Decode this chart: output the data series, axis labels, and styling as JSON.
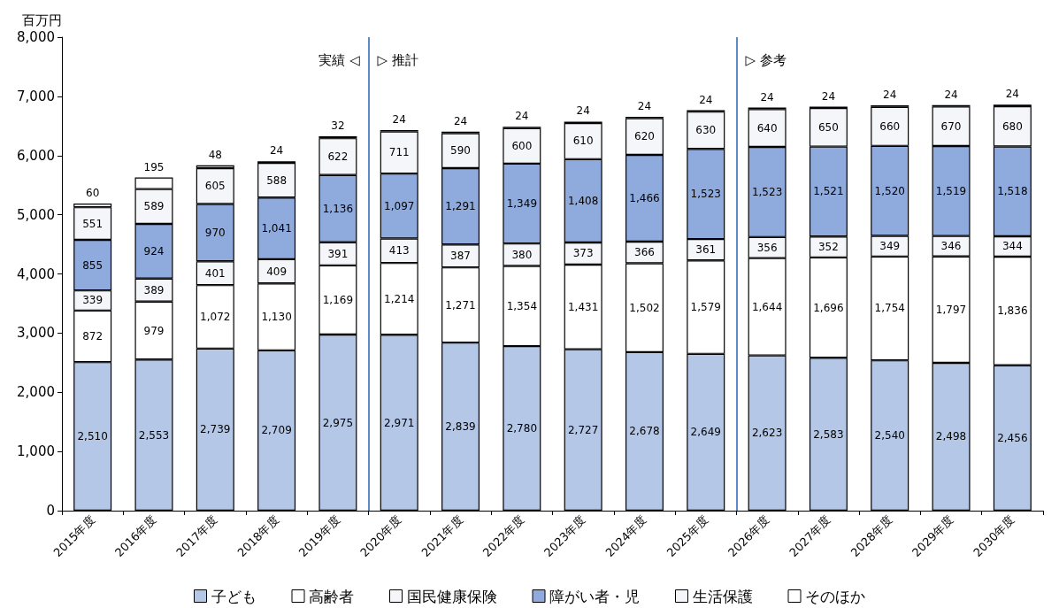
{
  "chart_data": {
    "type": "bar",
    "stacked": true,
    "ylabel": "百万円",
    "categories": [
      "2015年度",
      "2016年度",
      "2017年度",
      "2018年度",
      "2019年度",
      "2020年度",
      "2021年度",
      "2022年度",
      "2023年度",
      "2024年度",
      "2025年度",
      "2026年度",
      "2027年度",
      "2028年度",
      "2029年度",
      "2030年度"
    ],
    "series": [
      {
        "name": "子ども",
        "color": "#b4c7e7",
        "values": [
          2510,
          2553,
          2739,
          2709,
          2975,
          2971,
          2839,
          2780,
          2727,
          2678,
          2649,
          2623,
          2583,
          2540,
          2498,
          2456
        ],
        "value_labels": [
          "2,510",
          "2,553",
          "2,739",
          "2,709",
          "2,975",
          "2,971",
          "2,839",
          "2,780",
          "2,727",
          "2,678",
          "2,649",
          "2,623",
          "2,583",
          "2,540",
          "2,498",
          "2,456"
        ]
      },
      {
        "name": "高齢者",
        "color": "#ffffff",
        "values": [
          872,
          979,
          1072,
          1130,
          1169,
          1214,
          1271,
          1354,
          1431,
          1502,
          1579,
          1644,
          1696,
          1754,
          1797,
          1836
        ],
        "value_labels": [
          "872",
          "979",
          "1,072",
          "1,130",
          "1,169",
          "1,214",
          "1,271",
          "1,354",
          "1,431",
          "1,502",
          "1,579",
          "1,644",
          "1,696",
          "1,754",
          "1,797",
          "1,836"
        ]
      },
      {
        "name": "国民健康保険",
        "color": "#f4f6fa",
        "values": [
          339,
          389,
          401,
          409,
          391,
          413,
          387,
          380,
          373,
          366,
          361,
          356,
          352,
          349,
          346,
          344
        ],
        "value_labels": [
          "339",
          "389",
          "401",
          "409",
          "391",
          "413",
          "387",
          "380",
          "373",
          "366",
          "361",
          "356",
          "352",
          "349",
          "346",
          "344"
        ]
      },
      {
        "name": "障がい者・児",
        "color": "#8faadc",
        "values": [
          855,
          924,
          970,
          1041,
          1136,
          1097,
          1291,
          1349,
          1408,
          1466,
          1523,
          1523,
          1521,
          1520,
          1519,
          1518
        ],
        "value_labels": [
          "855",
          "924",
          "970",
          "1,041",
          "1,136",
          "1,097",
          "1,291",
          "1,349",
          "1,408",
          "1,466",
          "1,523",
          "1,523",
          "1,521",
          "1,520",
          "1,519",
          "1,518"
        ]
      },
      {
        "name": "生活保護",
        "color": "#f4f6fa",
        "values": [
          551,
          589,
          605,
          588,
          622,
          711,
          590,
          600,
          610,
          620,
          630,
          640,
          650,
          660,
          670,
          680
        ],
        "value_labels": [
          "551",
          "589",
          "605",
          "588",
          "622",
          "711",
          "590",
          "600",
          "610",
          "620",
          "630",
          "640",
          "650",
          "660",
          "670",
          "680"
        ]
      },
      {
        "name": "そのほか",
        "color": "#ffffff",
        "values": [
          60,
          195,
          48,
          24,
          32,
          24,
          24,
          24,
          24,
          24,
          24,
          24,
          24,
          24,
          24,
          24
        ],
        "value_labels": [
          "60",
          "195",
          "48",
          "24",
          "32",
          "24",
          "24",
          "24",
          "24",
          "24",
          "24",
          "24",
          "24",
          "24",
          "24",
          "24"
        ]
      }
    ],
    "ylim": [
      0,
      8000
    ],
    "yticks": [
      0,
      {
        "value": 1000,
        "label": "1,000"
      },
      {
        "value": 2000,
        "label": "2,000"
      },
      {
        "value": 3000,
        "label": "3,000"
      },
      {
        "value": 4000,
        "label": "4,000"
      },
      {
        "value": 5000,
        "label": "5,000"
      },
      {
        "value": 6000,
        "label": "6,000"
      },
      {
        "value": 7000,
        "label": "7,000"
      },
      {
        "value": 8000,
        "label": "8,000"
      }
    ],
    "ref_lines": [
      {
        "axis": "x",
        "value": "2020年度",
        "color": "#5b8ac4",
        "label": "▷ 推計"
      },
      {
        "axis": "x",
        "value": "2026年度",
        "color": "#5b8ac4",
        "label": "▷ 参考"
      }
    ],
    "annotations": [
      "実績 ◁"
    ],
    "grid": false,
    "legend": "bottom"
  }
}
